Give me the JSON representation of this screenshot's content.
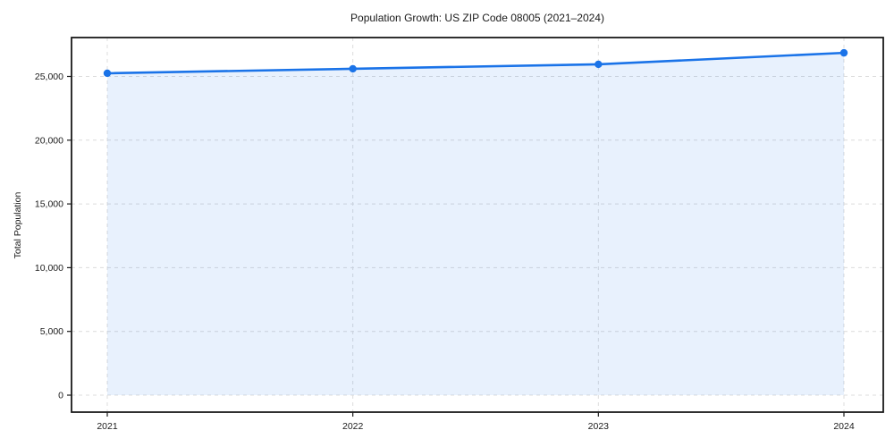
{
  "page": {
    "background": "#ffffff"
  },
  "chart_data": {
    "type": "line",
    "title": "Population Growth: US ZIP Code 08005 (2021–2024)",
    "xlabel": "",
    "ylabel": "Total Population",
    "x": [
      "2021",
      "2022",
      "2023",
      "2024"
    ],
    "series": [
      {
        "name": "Total Population",
        "values": [
          25250,
          25600,
          25950,
          26850
        ]
      }
    ],
    "x_tick_labels": [
      "2021",
      "2022",
      "2023",
      "2024"
    ],
    "y_ticks": [
      0,
      5000,
      10000,
      15000,
      20000,
      25000
    ],
    "y_tick_labels": [
      "0",
      "5,000",
      "10,000",
      "15,000",
      "20,000",
      "25,000"
    ],
    "ylim": [
      -1332,
      28050
    ],
    "grid": true,
    "grid_style": "dashed",
    "legend_position": "none",
    "marker": "circle",
    "area_fill": true,
    "colors": {
      "line": "#1a73e8",
      "marker": "#1a73e8",
      "area": "rgba(26,115,232,0.10)",
      "grid": "#dcdcdc",
      "spine": "#1a1a1a",
      "text": "#1a1a1a",
      "background": "#ffffff"
    }
  }
}
